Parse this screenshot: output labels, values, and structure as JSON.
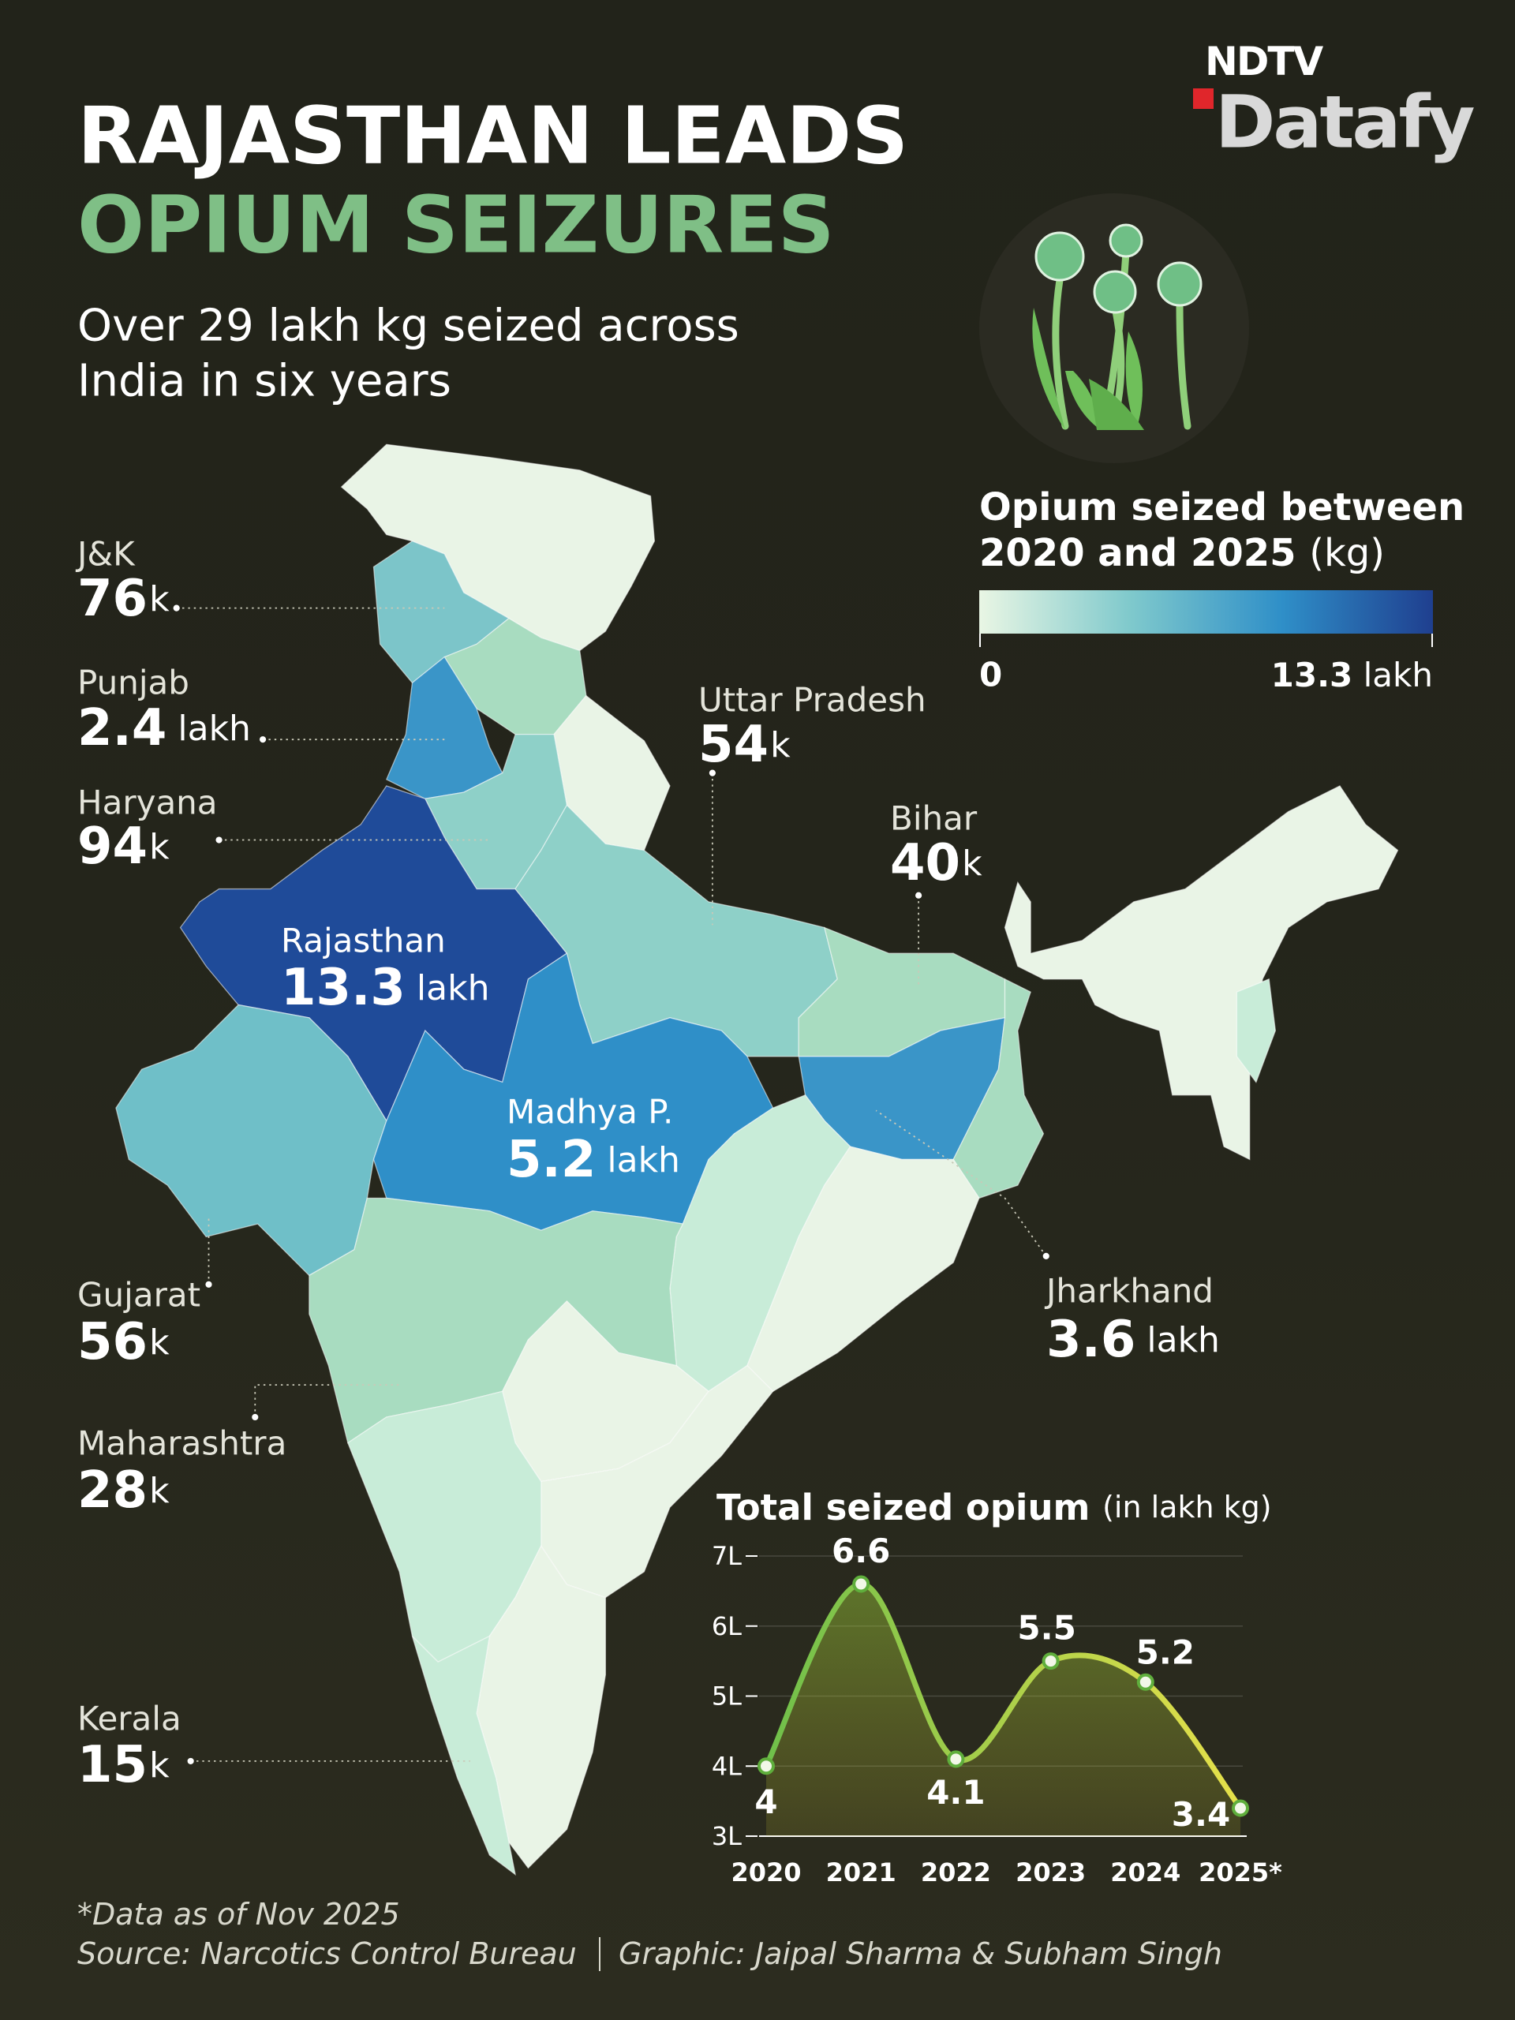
{
  "logo": {
    "top": "NDTV",
    "bottom": "Datafy"
  },
  "header": {
    "title_line1": "RAJASTHAN LEADS",
    "title_line2": "OPIUM SEIZURES",
    "subtitle_line1": "Over 29 lakh kg seized across",
    "subtitle_line2": "India in six years"
  },
  "legend": {
    "title_line1": "Opium seized between",
    "title_line2": "2020 and 2025",
    "unit": "(kg)",
    "min": 0,
    "max": 13.3,
    "max_unit": "lakh",
    "colors": [
      "#e9f6e4",
      "#7fc9cc",
      "#2f8fc8",
      "#1f3f8f"
    ]
  },
  "map_labels": [
    {
      "state": "J&K",
      "value": 76,
      "unit": "k"
    },
    {
      "state": "Punjab",
      "value": 2.4,
      "unit": "lakh"
    },
    {
      "state": "Haryana",
      "value": 94,
      "unit": "k"
    },
    {
      "state": "Rajasthan",
      "value": 13.3,
      "unit": "lakh"
    },
    {
      "state": "Madhya P.",
      "value": 5.2,
      "unit": "lakh"
    },
    {
      "state": "Uttar Pradesh",
      "value": 54,
      "unit": "k"
    },
    {
      "state": "Bihar",
      "value": 40,
      "unit": "k"
    },
    {
      "state": "Gujarat",
      "value": 56,
      "unit": "k"
    },
    {
      "state": "Maharashtra",
      "value": 28,
      "unit": "k"
    },
    {
      "state": "Kerala",
      "value": 15,
      "unit": "k"
    },
    {
      "state": "Jharkhand",
      "value": 3.6,
      "unit": "lakh"
    }
  ],
  "chart_data": {
    "type": "line",
    "title": "Total seized opium",
    "subtitle": "(in lakh kg)",
    "categories": [
      "2020",
      "2021",
      "2022",
      "2023",
      "2024",
      "2025*"
    ],
    "values": [
      4,
      6.6,
      4.1,
      5.5,
      5.2,
      3.4
    ],
    "colors": [
      "#6fbf4a",
      "#e6e04a"
    ],
    "ylim": [
      3,
      7
    ],
    "yticks": [
      {
        "value": 3,
        "label": "3L"
      },
      {
        "value": 4,
        "label": "4L"
      },
      {
        "value": 5,
        "label": "5L"
      },
      {
        "value": 6,
        "label": "6L"
      },
      {
        "value": 7,
        "label": "7L"
      }
    ],
    "grid": true
  },
  "footer": {
    "note": "*Data as of Nov 2025",
    "source": "Source: Narcotics Control Bureau",
    "credit": "Graphic: Jaipal Sharma & Subham Singh"
  }
}
